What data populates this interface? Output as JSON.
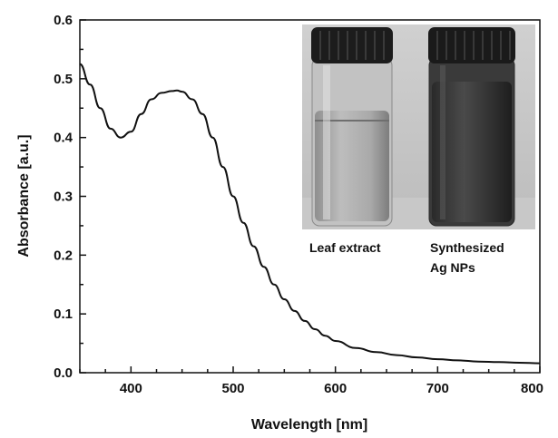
{
  "chart_data": {
    "type": "line",
    "title": "",
    "xlabel": "Wavelength [nm]",
    "ylabel": "Absorbance [a.u.]",
    "xlim": [
      350,
      800
    ],
    "ylim": [
      0.0,
      0.6
    ],
    "xticks": [
      400,
      500,
      600,
      700,
      800
    ],
    "yticks": [
      "0.0",
      "0.1",
      "0.2",
      "0.3",
      "0.4",
      "0.5",
      "0.6"
    ],
    "grid": false,
    "series": [
      {
        "color": "#111111",
        "x": [
          350,
          360,
          370,
          380,
          390,
          400,
          410,
          420,
          430,
          440,
          445,
          450,
          460,
          470,
          480,
          490,
          500,
          510,
          520,
          530,
          540,
          550,
          560,
          570,
          580,
          590,
          600,
          620,
          640,
          660,
          680,
          700,
          720,
          740,
          760,
          780,
          800
        ],
        "y": [
          0.525,
          0.49,
          0.45,
          0.415,
          0.4,
          0.41,
          0.44,
          0.465,
          0.476,
          0.479,
          0.48,
          0.478,
          0.465,
          0.44,
          0.4,
          0.35,
          0.3,
          0.255,
          0.215,
          0.18,
          0.15,
          0.125,
          0.105,
          0.088,
          0.074,
          0.063,
          0.054,
          0.042,
          0.035,
          0.03,
          0.026,
          0.023,
          0.021,
          0.019,
          0.018,
          0.017,
          0.016
        ]
      }
    ]
  },
  "inset": {
    "left_label": "Leaf extract",
    "right_label_line1": "Synthesized",
    "right_label_line2": "Ag NPs"
  }
}
